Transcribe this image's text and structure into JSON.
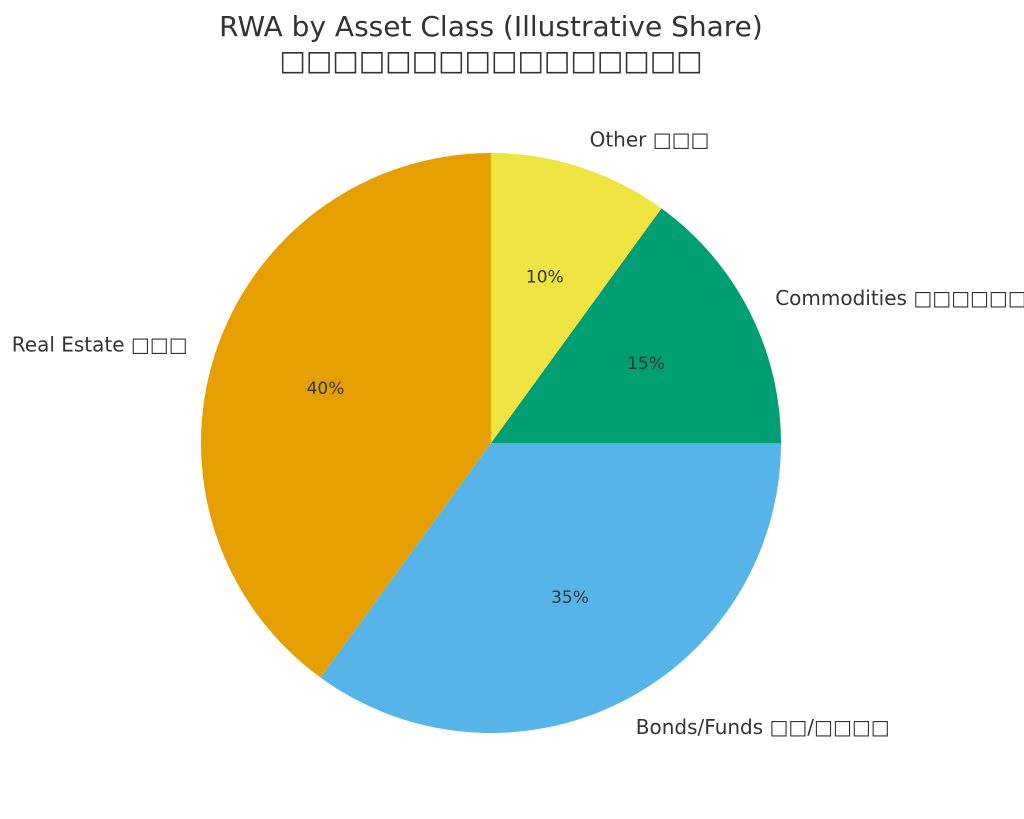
{
  "chart_data": {
    "type": "pie",
    "title": "RWA by Asset Class (Illustrative Share)",
    "subtitle": "□□□□□□□□□□□□□□□□",
    "start_angle_deg": 90,
    "direction": "counterclockwise",
    "slices": [
      {
        "label": "Real Estate □□□",
        "value": 40,
        "percent_label": "40%",
        "color": "#E69F00"
      },
      {
        "label": "Bonds/Funds □□/□□□□",
        "value": 35,
        "percent_label": "35%",
        "color": "#56B4E9"
      },
      {
        "label": "Commodities □□□□□□",
        "value": 15,
        "percent_label": "15%",
        "color": "#009E73"
      },
      {
        "label": "Other □□□",
        "value": 10,
        "percent_label": "10%",
        "color": "#F0E442"
      }
    ]
  }
}
